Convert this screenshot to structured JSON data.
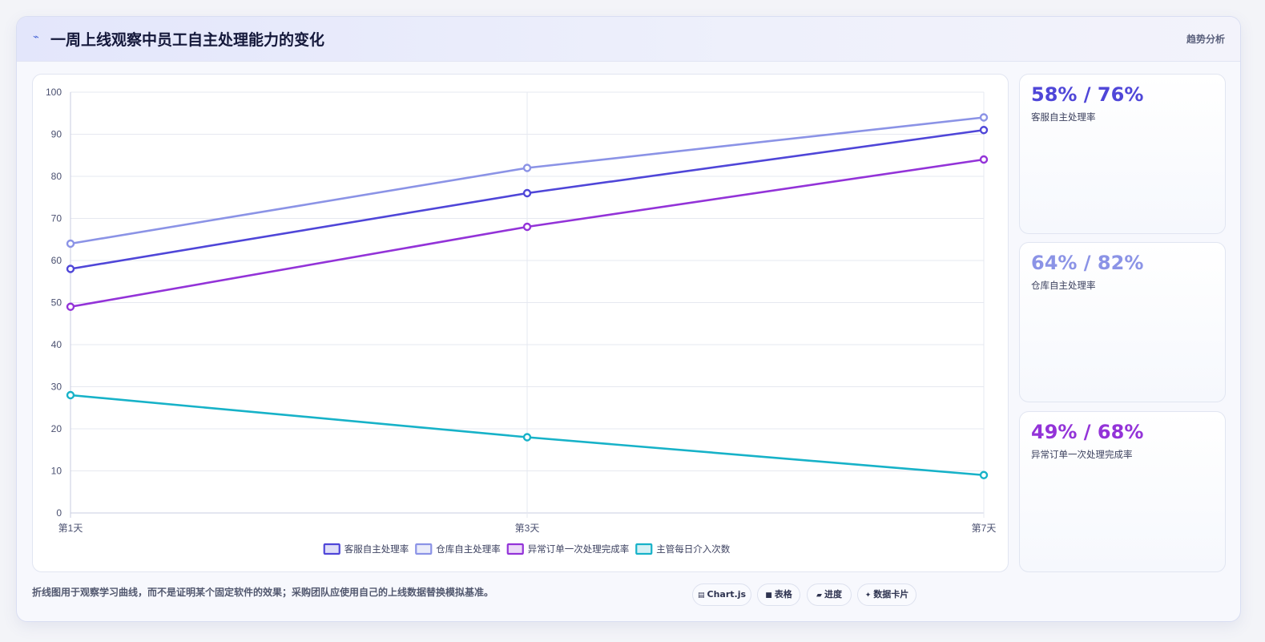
{
  "header": {
    "icon": "sparkle-icon",
    "title": "一周上线观察中员工自主处理能力的变化",
    "tag": "趋势分析"
  },
  "chart_data": {
    "type": "line",
    "categories": [
      "第1天",
      "第3天",
      "第7天"
    ],
    "ylim": [
      0,
      100
    ],
    "yticks": [
      0,
      10,
      20,
      30,
      40,
      50,
      60,
      70,
      80,
      90,
      100
    ],
    "grid": true,
    "legend_position": "bottom",
    "series": [
      {
        "name": "客服自主处理率",
        "values": [
          58,
          76,
          91
        ],
        "color": "#4f46d8"
      },
      {
        "name": "仓库自主处理率",
        "values": [
          64,
          82,
          94
        ],
        "color": "#8b93e6"
      },
      {
        "name": "异常订单一次处理完成率",
        "values": [
          49,
          68,
          84
        ],
        "color": "#9333d8"
      },
      {
        "name": "主管每日介入次数",
        "values": [
          28,
          18,
          9
        ],
        "color": "#17b2c8"
      }
    ]
  },
  "stats": [
    {
      "value": "58% / 76%",
      "label": "客服自主处理率",
      "color": "#4f46d8"
    },
    {
      "value": "64% / 82%",
      "label": "仓库自主处理率",
      "color": "#8b93e6"
    },
    {
      "value": "49% / 68%",
      "label": "异常订单一次处理完成率",
      "color": "#9333d8"
    }
  ],
  "footnote": "折线图用于观察学习曲线，而不是证明某个固定软件的效果；采购团队应使用自己的上线数据替换模拟基准。",
  "chips": [
    {
      "label": "Chart.js",
      "icon": "chart-icon",
      "glyph": "▤"
    },
    {
      "label": "表格",
      "icon": "table-icon",
      "glyph": "■"
    },
    {
      "label": "进度",
      "icon": "progress-icon",
      "glyph": "▰"
    },
    {
      "label": "数据卡片",
      "icon": "card-icon",
      "glyph": "✦"
    }
  ]
}
